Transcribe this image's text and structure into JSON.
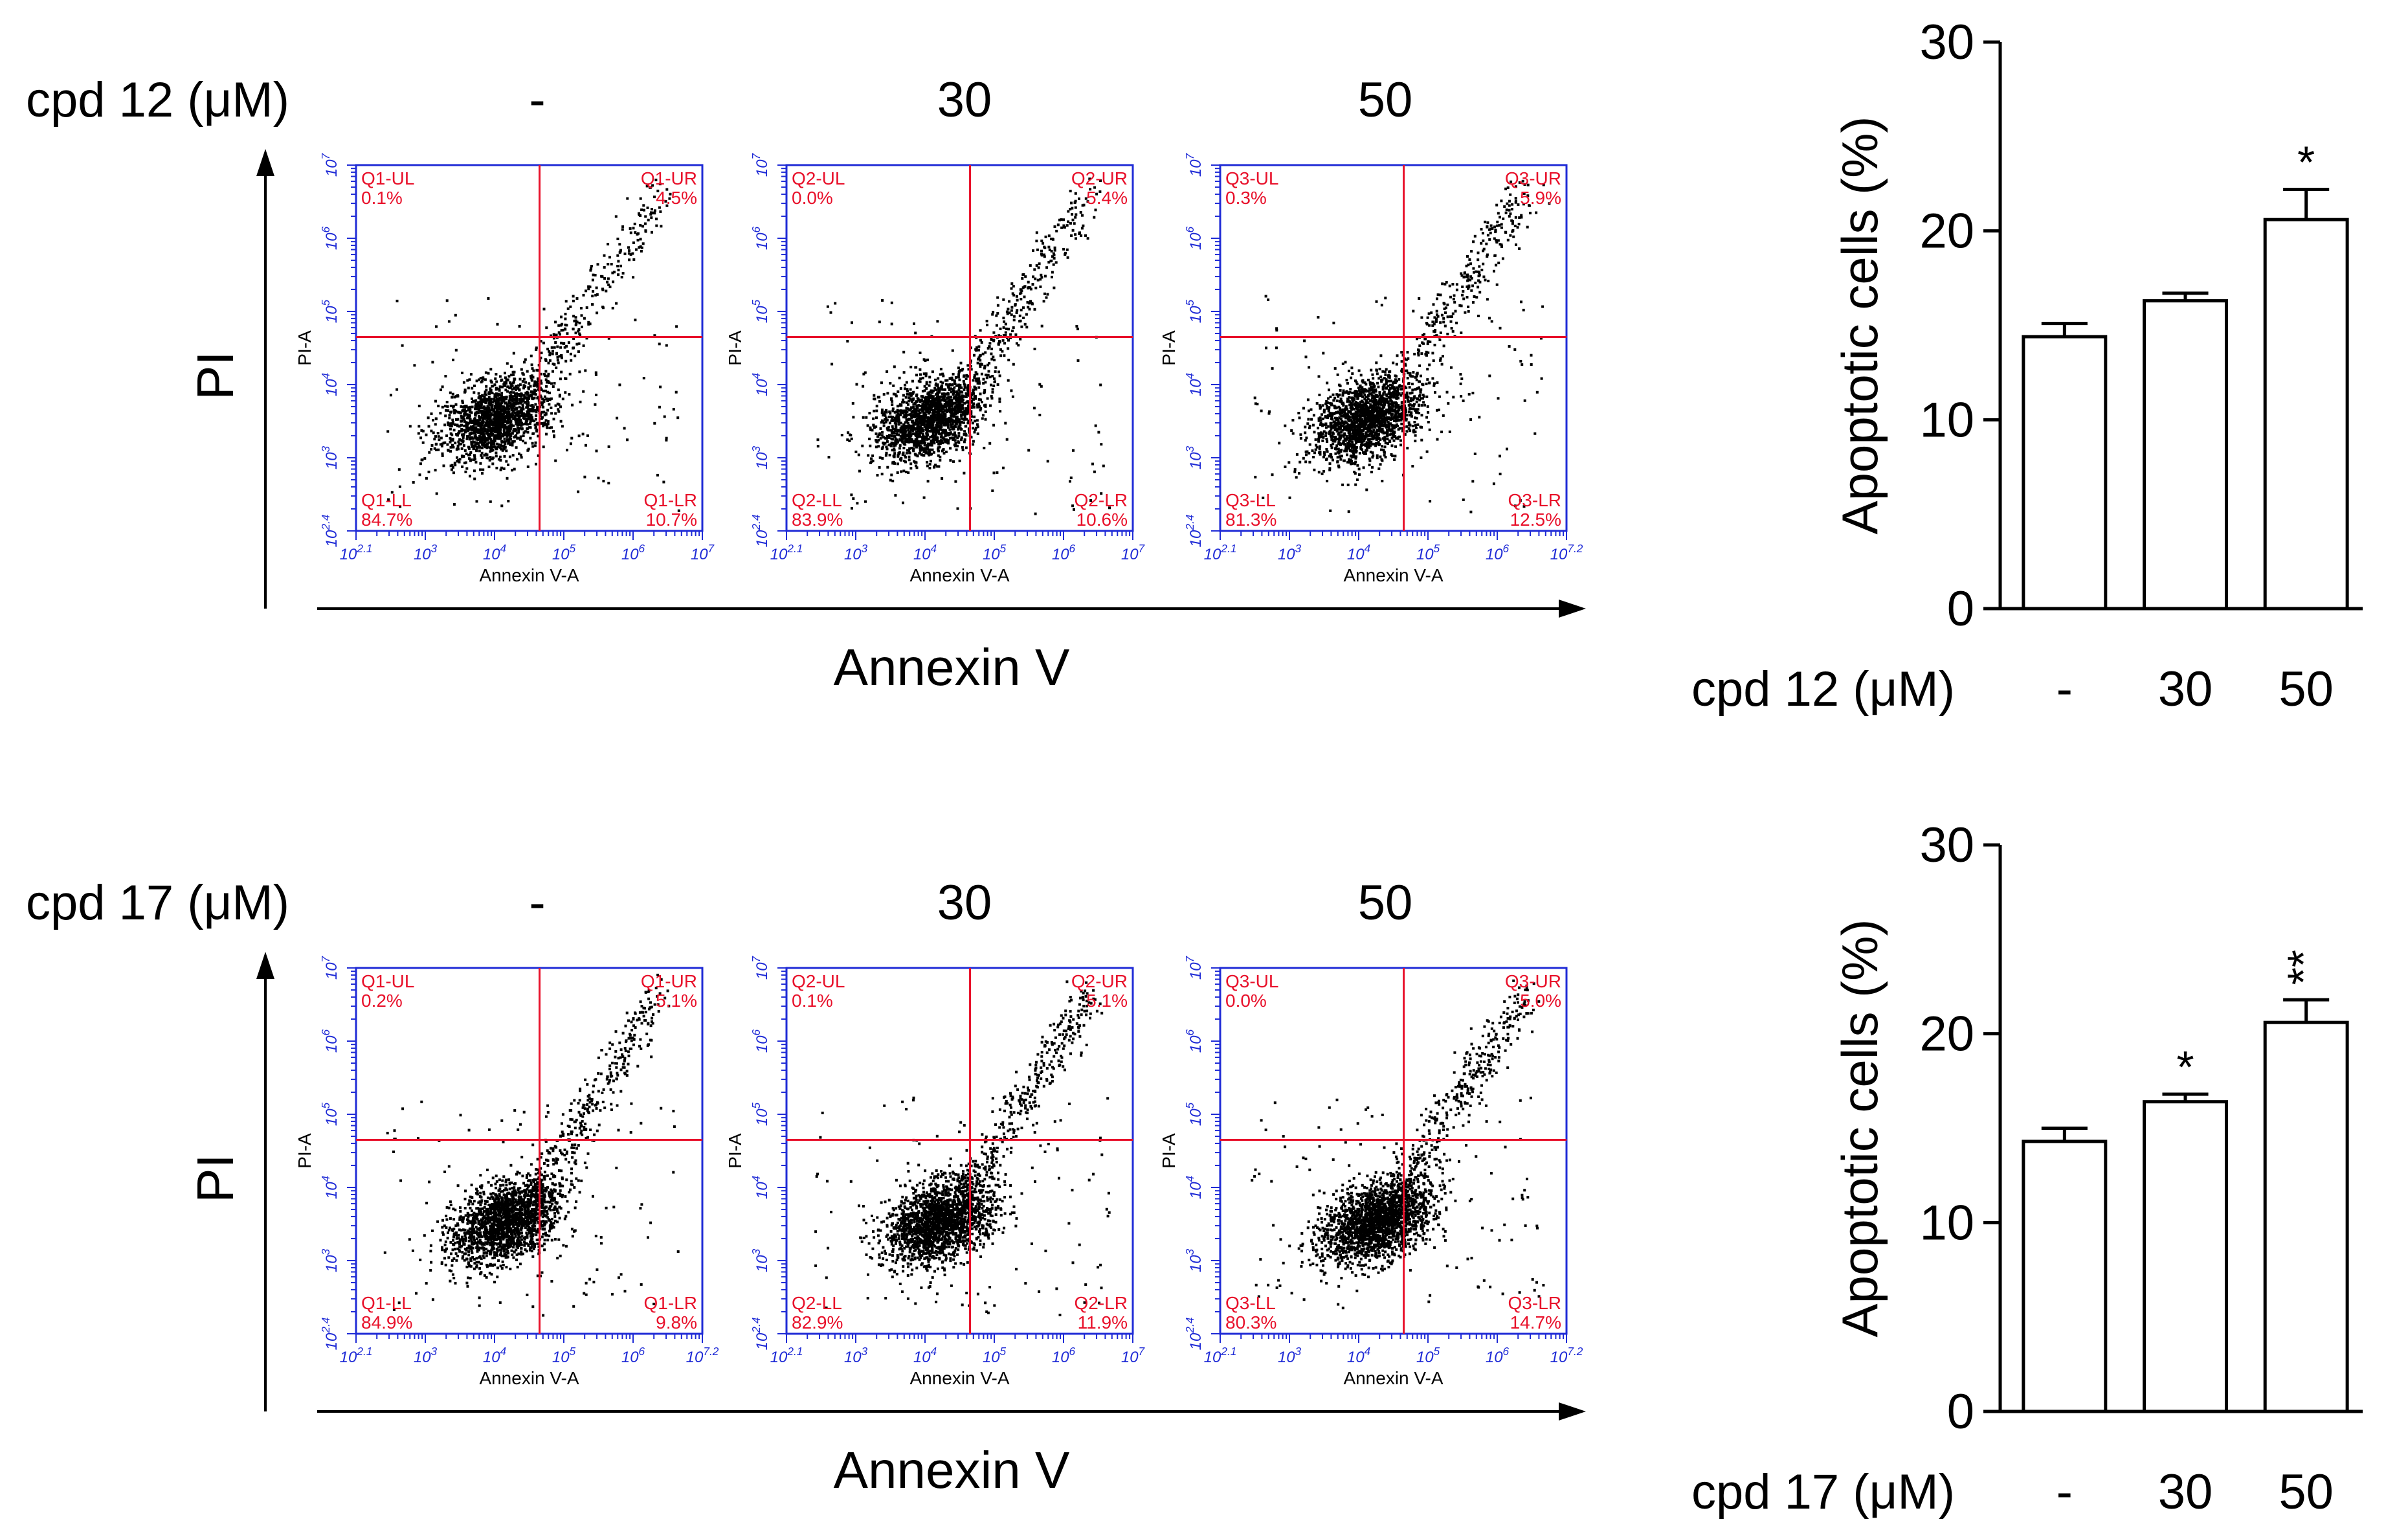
{
  "rows": [
    {
      "compound_label": "cpd 12 (μM)",
      "concentrations": [
        "-",
        "30",
        "50"
      ],
      "y_axis_label": "PI",
      "x_axis_label": "Annexin V",
      "flow_plots": [
        {
          "ul_name": "Q1-UL",
          "ur_name": "Q1-UR",
          "ll_name": "Q1-LL",
          "lr_name": "Q1-LR",
          "ul": "0.1%",
          "ur": "4.5%",
          "ll": "84.7%",
          "lr": "10.7%",
          "x_axis_title": "Annexin V-A",
          "y_axis_title": "PI-A",
          "x_ticks": [
            "10^2.1",
            "10^3",
            "10^4",
            "10^5",
            "10^6",
            "10^7"
          ],
          "y_ticks": [
            "10^2.4",
            "10^3",
            "10^4",
            "10^5",
            "10^6",
            "10^7"
          ]
        },
        {
          "ul_name": "Q2-UL",
          "ur_name": "Q2-UR",
          "ll_name": "Q2-LL",
          "lr_name": "Q2-LR",
          "ul": "0.0%",
          "ur": "5.4%",
          "ll": "83.9%",
          "lr": "10.6%",
          "x_axis_title": "Annexin V-A",
          "y_axis_title": "PI-A",
          "x_ticks": [
            "10^2.1",
            "10^3",
            "10^4",
            "10^5",
            "10^6",
            "10^7"
          ],
          "y_ticks": [
            "10^2.4",
            "10^3",
            "10^4",
            "10^5",
            "10^6",
            "10^7"
          ]
        },
        {
          "ul_name": "Q3-UL",
          "ur_name": "Q3-UR",
          "ll_name": "Q3-LL",
          "lr_name": "Q3-LR",
          "ul": "0.3%",
          "ur": "5.9%",
          "ll": "81.3%",
          "lr": "12.5%",
          "x_axis_title": "Annexin V-A",
          "y_axis_title": "PI-A",
          "x_ticks": [
            "10^2.1",
            "10^3",
            "10^4",
            "10^5",
            "10^6",
            "10^7.2"
          ],
          "y_ticks": [
            "10^2.4",
            "10^3",
            "10^4",
            "10^5",
            "10^6",
            "10^7"
          ]
        }
      ]
    },
    {
      "compound_label": "cpd 17 (μM)",
      "concentrations": [
        "-",
        "30",
        "50"
      ],
      "y_axis_label": "PI",
      "x_axis_label": "Annexin V",
      "flow_plots": [
        {
          "ul_name": "Q1-UL",
          "ur_name": "Q1-UR",
          "ll_name": "Q1-LL",
          "lr_name": "Q1-LR",
          "ul": "0.2%",
          "ur": "5.1%",
          "ll": "84.9%",
          "lr": "9.8%",
          "x_axis_title": "Annexin V-A",
          "y_axis_title": "PI-A",
          "x_ticks": [
            "10^2.1",
            "10^3",
            "10^4",
            "10^5",
            "10^6",
            "10^7.2"
          ],
          "y_ticks": [
            "10^2.4",
            "10^3",
            "10^4",
            "10^5",
            "10^6",
            "10^7"
          ]
        },
        {
          "ul_name": "Q2-UL",
          "ur_name": "Q2-UR",
          "ll_name": "Q2-LL",
          "lr_name": "Q2-LR",
          "ul": "0.1%",
          "ur": "5.1%",
          "ll": "82.9%",
          "lr": "11.9%",
          "x_axis_title": "Annexin V-A",
          "y_axis_title": "PI-A",
          "x_ticks": [
            "10^2.1",
            "10^3",
            "10^4",
            "10^5",
            "10^6",
            "10^7"
          ],
          "y_ticks": [
            "10^2.4",
            "10^3",
            "10^4",
            "10^5",
            "10^6",
            "10^7"
          ]
        },
        {
          "ul_name": "Q3-UL",
          "ur_name": "Q3-UR",
          "ll_name": "Q3-LL",
          "lr_name": "Q3-LR",
          "ul": "0.0%",
          "ur": "5.0%",
          "ll": "80.3%",
          "lr": "14.7%",
          "x_axis_title": "Annexin V-A",
          "y_axis_title": "PI-A",
          "x_ticks": [
            "10^2.1",
            "10^3",
            "10^4",
            "10^5",
            "10^6",
            "10^7.2"
          ],
          "y_ticks": [
            "10^2.4",
            "10^3",
            "10^4",
            "10^5",
            "10^6",
            "10^7"
          ]
        }
      ]
    }
  ],
  "colors": {
    "flow_axis": "#1f2bd6",
    "flow_gate": "#e8102a",
    "flow_dot": "#000000",
    "bar_fill": "#ffffff",
    "bar_stroke": "#000000"
  },
  "chart_data": [
    {
      "type": "bar",
      "title": "",
      "xlabel": "cpd 12 (μM)",
      "ylabel": "Apoptotic cells (%)",
      "categories": [
        "-",
        "30",
        "50"
      ],
      "values": [
        14.4,
        16.3,
        20.6
      ],
      "errors": [
        0.7,
        0.4,
        1.6
      ],
      "significance": [
        "",
        "",
        "*"
      ],
      "ylim": [
        0,
        30
      ],
      "yticks": [
        0,
        10,
        20,
        30
      ]
    },
    {
      "type": "bar",
      "title": "",
      "xlabel": "cpd 17 (μM)",
      "ylabel": "Apoptotic cells (%)",
      "categories": [
        "-",
        "30",
        "50"
      ],
      "values": [
        14.3,
        16.4,
        20.6
      ],
      "errors": [
        0.7,
        0.4,
        1.2
      ],
      "significance": [
        "",
        "*",
        "**"
      ],
      "ylim": [
        0,
        30
      ],
      "yticks": [
        0,
        10,
        20,
        30
      ]
    }
  ]
}
